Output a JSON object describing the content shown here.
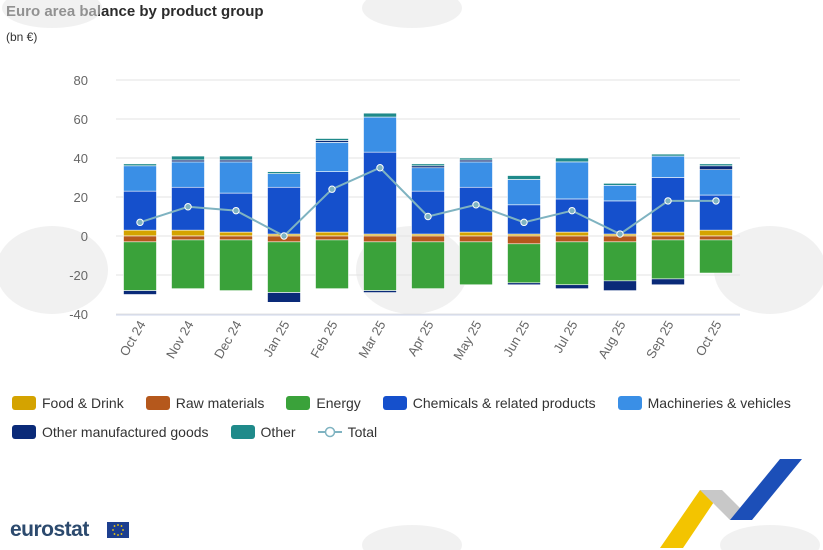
{
  "title": "Euro area balance by product group",
  "subtitle": "(bn €)",
  "brand": "eurostat",
  "chart_data": {
    "type": "bar",
    "stacked": true,
    "categories": [
      "Oct 24",
      "Nov 24",
      "Dec 24",
      "Jan 25",
      "Feb 25",
      "Mar 25",
      "Apr 25",
      "May 25",
      "Jun 25",
      "Jul 25",
      "Aug 25",
      "Sep 25",
      "Oct 25"
    ],
    "ylim": [
      -40,
      80
    ],
    "yticks": [
      -40,
      -20,
      0,
      20,
      40,
      60,
      80
    ],
    "grid": true,
    "legend_position": "bottom",
    "series": [
      {
        "name": "Food & Drink",
        "color": "#d4a300",
        "values": [
          3,
          3,
          2,
          1,
          2,
          1,
          1,
          2,
          1,
          2,
          1,
          2,
          3
        ]
      },
      {
        "name": "Raw materials",
        "color": "#b5581c",
        "values": [
          -3,
          -2,
          -2,
          -3,
          -2,
          -3,
          -3,
          -3,
          -4,
          -3,
          -3,
          -2,
          -2
        ]
      },
      {
        "name": "Energy",
        "color": "#3aa23a",
        "values": [
          -25,
          -25,
          -26,
          -26,
          -25,
          -25,
          -24,
          -22,
          -20,
          -22,
          -20,
          -20,
          -17
        ]
      },
      {
        "name": "Chemicals & related products",
        "color": "#1550cc",
        "values": [
          20,
          22,
          20,
          24,
          31,
          42,
          22,
          23,
          15,
          17,
          17,
          28,
          18
        ]
      },
      {
        "name": "Machineries & vehicles",
        "color": "#3a8fe6",
        "values": [
          13,
          13,
          16,
          7,
          15,
          18,
          12,
          13,
          13,
          19,
          8,
          11,
          13
        ]
      },
      {
        "name": "Other manufactured goods",
        "color": "#0a2a78",
        "values": [
          -2,
          1,
          1,
          -5,
          1,
          -1,
          1,
          1,
          -1,
          -2,
          -5,
          -3,
          2
        ]
      },
      {
        "name": "Other",
        "color": "#1f8a8a",
        "values": [
          1,
          2,
          2,
          1,
          1,
          2,
          1,
          1,
          2,
          2,
          1,
          1,
          1
        ]
      }
    ],
    "total": {
      "name": "Total",
      "color": "#7fb3c1",
      "values": [
        7,
        15,
        13,
        0,
        24,
        35,
        10,
        16,
        7,
        13,
        1,
        18,
        18
      ]
    }
  }
}
